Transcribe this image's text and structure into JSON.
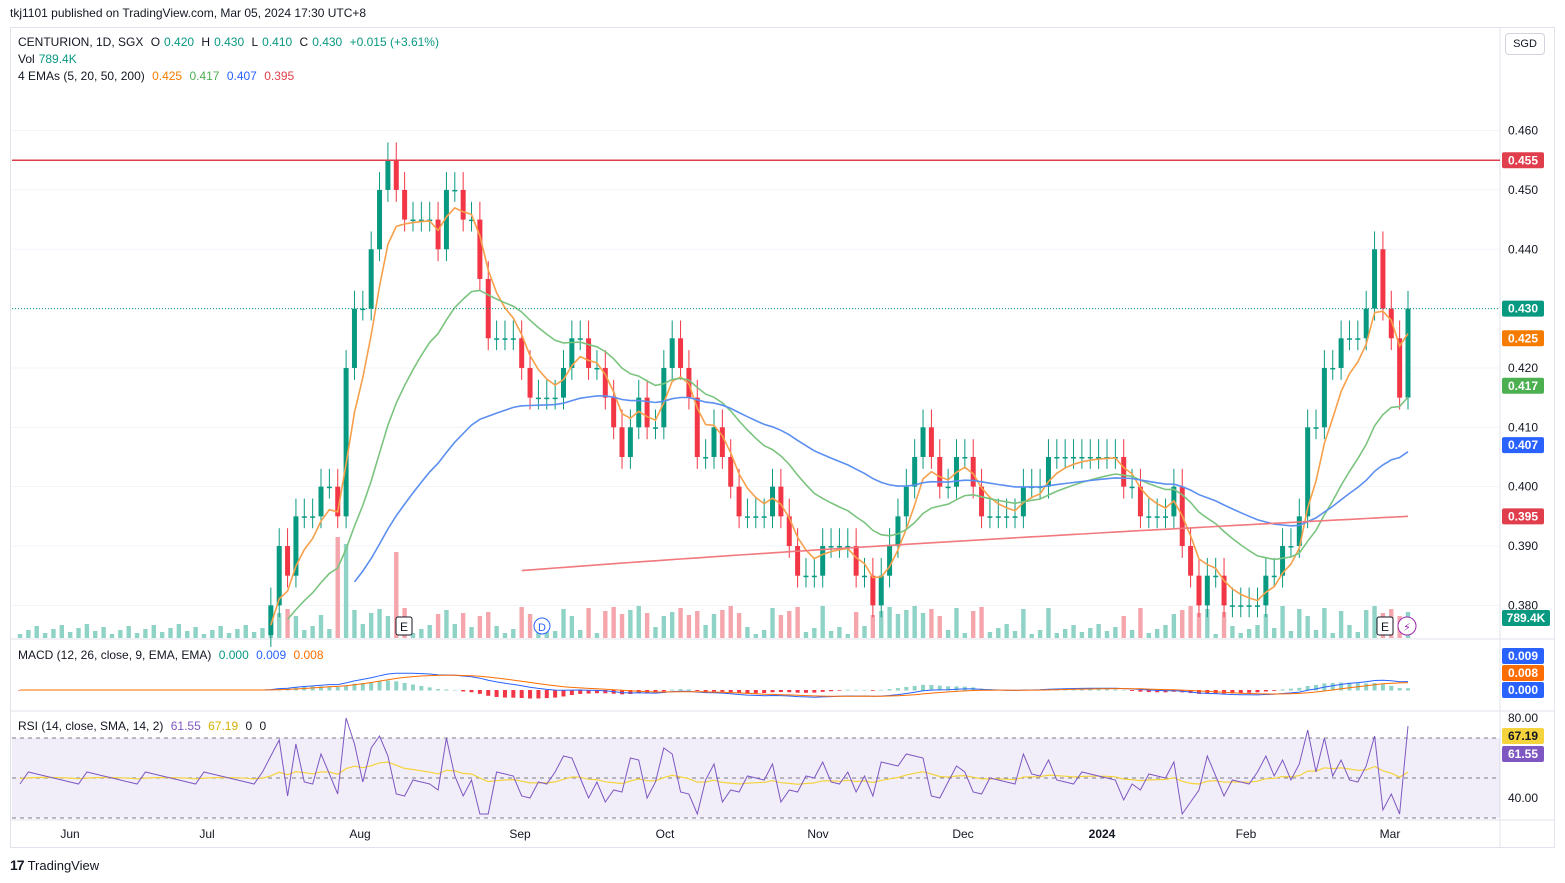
{
  "publisher_line": "tkj1101 published on TradingView.com, Mar 05, 2024 17:30 UTC+8",
  "currency_button": "SGD",
  "legend": {
    "symbol": "CENTURION, 1D, SGX",
    "open_label": "O",
    "open": "0.420",
    "high_label": "H",
    "high": "0.430",
    "low_label": "L",
    "low": "0.410",
    "close_label": "C",
    "close": "0.430",
    "change": "+0.015 (+3.61%)",
    "vol_label": "Vol",
    "vol": "789.4K",
    "ema_label": "4 EMAs (5, 20, 50, 200)",
    "ema5": "0.425",
    "ema20": "0.417",
    "ema50": "0.407",
    "ema200": "0.395",
    "macd_label": "MACD (12, 26, close, 9, EMA, EMA)",
    "macd_hist": "0.000",
    "macd": "0.009",
    "macd_signal": "0.008",
    "rsi_label": "RSI (14, close, SMA, 14, 2)",
    "rsi": "61.55",
    "rsi_ma": "67.19",
    "rsi_extra1": "0",
    "rsi_extra2": "0"
  },
  "colors": {
    "up": "#089981",
    "down": "#f23645",
    "up_vol": "#8fd3c6",
    "down_vol": "#f5a6ad",
    "ema5": "#f7a04b",
    "ema20": "#7bc47f",
    "ema50": "#5b8ff0",
    "ema200": "#f2797e",
    "resistance": "#e03e4c",
    "macd": "#2962ff",
    "signal": "#ff6d00",
    "rsi": "#7e57c2",
    "rsi_ma": "#f5d33c"
  },
  "markers": {
    "earnings": "E",
    "dividend": "D",
    "flash": "⚡"
  },
  "footer": "TradingView",
  "chart_data": {
    "type": "candlestick",
    "price_ticks": [
      "0.460",
      "0.450",
      "0.440",
      "0.430",
      "0.420",
      "0.410",
      "0.400",
      "0.390",
      "0.380"
    ],
    "price_range": [
      0.3745,
      0.4665
    ],
    "resistance_level": 0.455,
    "resistance_label": "0.455",
    "last_price_label": "0.430",
    "price_labels": [
      {
        "text": "0.455",
        "value": 0.455,
        "color": "#e03e4c"
      },
      {
        "text": "0.430",
        "value": 0.43,
        "color": "#089981"
      },
      {
        "text": "0.425",
        "value": 0.425,
        "color": "#f57c00"
      },
      {
        "text": "0.417",
        "value": 0.417,
        "color": "#4caf50"
      },
      {
        "text": "0.407",
        "value": 0.407,
        "color": "#2962ff"
      },
      {
        "text": "0.395",
        "value": 0.395,
        "color": "#e03e4c"
      }
    ],
    "volume_label": "789.4K",
    "months": [
      "Jun",
      "Jul",
      "Aug",
      "Sep",
      "Oct",
      "Nov",
      "Dec",
      "2024",
      "Feb",
      "Mar"
    ],
    "candles_close": [
      0.375,
      0.375,
      0.375,
      0.375,
      0.375,
      0.375,
      0.375,
      0.375,
      0.375,
      0.375,
      0.375,
      0.375,
      0.375,
      0.375,
      0.375,
      0.375,
      0.375,
      0.375,
      0.375,
      0.375,
      0.375,
      0.375,
      0.375,
      0.375,
      0.375,
      0.375,
      0.375,
      0.375,
      0.375,
      0.375,
      0.38,
      0.39,
      0.385,
      0.395,
      0.395,
      0.395,
      0.4,
      0.4,
      0.395,
      0.42,
      0.43,
      0.43,
      0.44,
      0.45,
      0.455,
      0.45,
      0.445,
      0.445,
      0.445,
      0.445,
      0.44,
      0.45,
      0.45,
      0.445,
      0.445,
      0.435,
      0.425,
      0.425,
      0.425,
      0.425,
      0.42,
      0.415,
      0.415,
      0.415,
      0.415,
      0.42,
      0.425,
      0.425,
      0.42,
      0.42,
      0.415,
      0.41,
      0.405,
      0.41,
      0.415,
      0.41,
      0.41,
      0.42,
      0.425,
      0.42,
      0.415,
      0.405,
      0.405,
      0.41,
      0.405,
      0.4,
      0.395,
      0.395,
      0.395,
      0.395,
      0.4,
      0.395,
      0.39,
      0.385,
      0.385,
      0.385,
      0.39,
      0.39,
      0.39,
      0.39,
      0.385,
      0.385,
      0.38,
      0.385,
      0.39,
      0.395,
      0.4,
      0.405,
      0.41,
      0.405,
      0.4,
      0.4,
      0.405,
      0.405,
      0.4,
      0.395,
      0.395,
      0.395,
      0.395,
      0.395,
      0.4,
      0.4,
      0.4,
      0.405,
      0.405,
      0.405,
      0.405,
      0.405,
      0.405,
      0.405,
      0.405,
      0.405,
      0.4,
      0.4,
      0.395,
      0.395,
      0.395,
      0.395,
      0.4,
      0.39,
      0.385,
      0.38,
      0.385,
      0.385,
      0.38,
      0.38,
      0.38,
      0.38,
      0.38,
      0.385,
      0.385,
      0.39,
      0.39,
      0.395,
      0.41,
      0.41,
      0.42,
      0.42,
      0.425,
      0.425,
      0.425,
      0.43,
      0.44,
      0.43,
      0.425,
      0.415,
      0.43
    ],
    "volume_note": "relative volumes",
    "ema_endpoints": {
      "ema5": 0.425,
      "ema20": 0.417,
      "ema50": 0.407,
      "ema200": 0.395
    },
    "macd_ticks": [
      "0.009",
      "0.008",
      "0.000"
    ],
    "rsi_ticks": [
      "80.00",
      "40.00"
    ],
    "rsi_labels": [
      {
        "text": "67.19",
        "color": "#f5d33c"
      },
      {
        "text": "61.55",
        "color": "#7e57c2"
      }
    ],
    "rsi_bands": [
      70,
      50,
      30
    ],
    "rsi_range": [
      30,
      82
    ]
  }
}
